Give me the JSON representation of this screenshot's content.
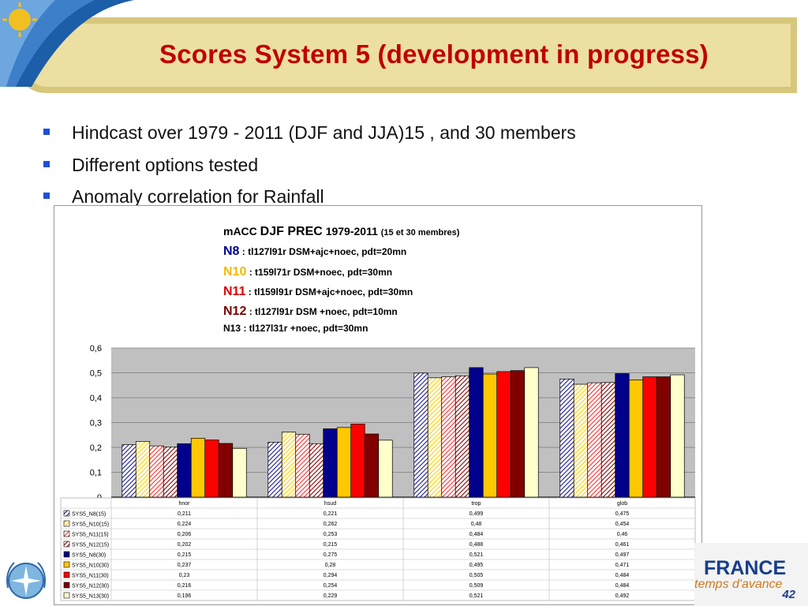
{
  "slide": {
    "title": "Scores System 5 (development in progress)",
    "bullets": [
      "Hindcast over 1979 - 2011 (DJF and JJA)15 , and 30 members",
      "Different options tested",
      "Anomaly correlation for Rainfall"
    ],
    "page_number": "42",
    "footer_brand": "FRANCE",
    "footer_tagline": "temps d'avance"
  },
  "legend_header": {
    "prefix": "mACC",
    "main": "DJF PREC",
    "years": "1979-2011",
    "members": "(15 et 30 membres)",
    "lines": [
      {
        "id": "N8",
        "text": ":  tl127l91r DSM+ajc+noec,   pdt=20mn",
        "color": "#00008b"
      },
      {
        "id": "N10",
        "text": ":  t159l71r DSM+noec,        pdt=30mn",
        "color": "#f5b800"
      },
      {
        "id": "N11",
        "text": ": tl159l91r DSM+ajc+noec, pdt=30mn",
        "color": "#e00000"
      },
      {
        "id": "N12",
        "text": ": tl127l91r DSM      +noec, pdt=10mn",
        "color": "#7a0000"
      },
      {
        "id": "N13",
        "text": ": tl127l31r              +noec, pdt=30mn",
        "color": "#000000"
      }
    ]
  },
  "chart_data": {
    "type": "bar",
    "categories": [
      "hnor",
      "hsud",
      "trop",
      "glob"
    ],
    "ylim": [
      0,
      0.6
    ],
    "yticks": [
      "0",
      "0,1",
      "0,2",
      "0,3",
      "0,4",
      "0,5",
      "0,6"
    ],
    "grid": true,
    "series": [
      {
        "name": "SYS5_N8(15)",
        "values": [
          0.211,
          0.221,
          0.499,
          0.475
        ],
        "labels": [
          "0,211",
          "0,221",
          "0,499",
          "0,475"
        ],
        "color": "#1a1a8f",
        "hatch": true
      },
      {
        "name": "SYS5_N10(15)",
        "values": [
          0.224,
          0.262,
          0.48,
          0.454
        ],
        "labels": [
          "0,224",
          "0,262",
          "0,48",
          "0,454"
        ],
        "color": "#ffd000",
        "hatch": true
      },
      {
        "name": "SYS5_N11(15)",
        "values": [
          0.206,
          0.253,
          0.484,
          0.46
        ],
        "labels": [
          "0,206",
          "0,253",
          "0,484",
          "0,46"
        ],
        "color": "#ff3030",
        "hatch": true
      },
      {
        "name": "SYS5_N12(15)",
        "values": [
          0.202,
          0.215,
          0.488,
          0.461
        ],
        "labels": [
          "0,202",
          "0,215",
          "0,488",
          "0,461"
        ],
        "color": "#8b0000",
        "hatch": true
      },
      {
        "name": "SYS5_N8(30)",
        "values": [
          0.215,
          0.275,
          0.521,
          0.497
        ],
        "labels": [
          "0,215",
          "0,275",
          "0,521",
          "0,497"
        ],
        "color": "#00008b",
        "hatch": false
      },
      {
        "name": "SYS5_N10(30)",
        "values": [
          0.237,
          0.28,
          0.495,
          0.471
        ],
        "labels": [
          "0,237",
          "0,28",
          "0,495",
          "0,471"
        ],
        "color": "#ffc800",
        "hatch": false
      },
      {
        "name": "SYS5_N11(30)",
        "values": [
          0.23,
          0.294,
          0.505,
          0.484
        ],
        "labels": [
          "0,23",
          "0,294",
          "0,505",
          "0,484"
        ],
        "color": "#ff0000",
        "hatch": false
      },
      {
        "name": "SYS5_N12(30)",
        "values": [
          0.216,
          0.254,
          0.509,
          0.484
        ],
        "labels": [
          "0,216",
          "0,254",
          "0,509",
          "0,484"
        ],
        "color": "#800000",
        "hatch": false
      },
      {
        "name": "SYS5_N13(30)",
        "values": [
          0.196,
          0.229,
          0.521,
          0.492
        ],
        "labels": [
          "0,196",
          "0,229",
          "0,521",
          "0,492"
        ],
        "color": "#ffffcc",
        "hatch": false
      }
    ]
  }
}
